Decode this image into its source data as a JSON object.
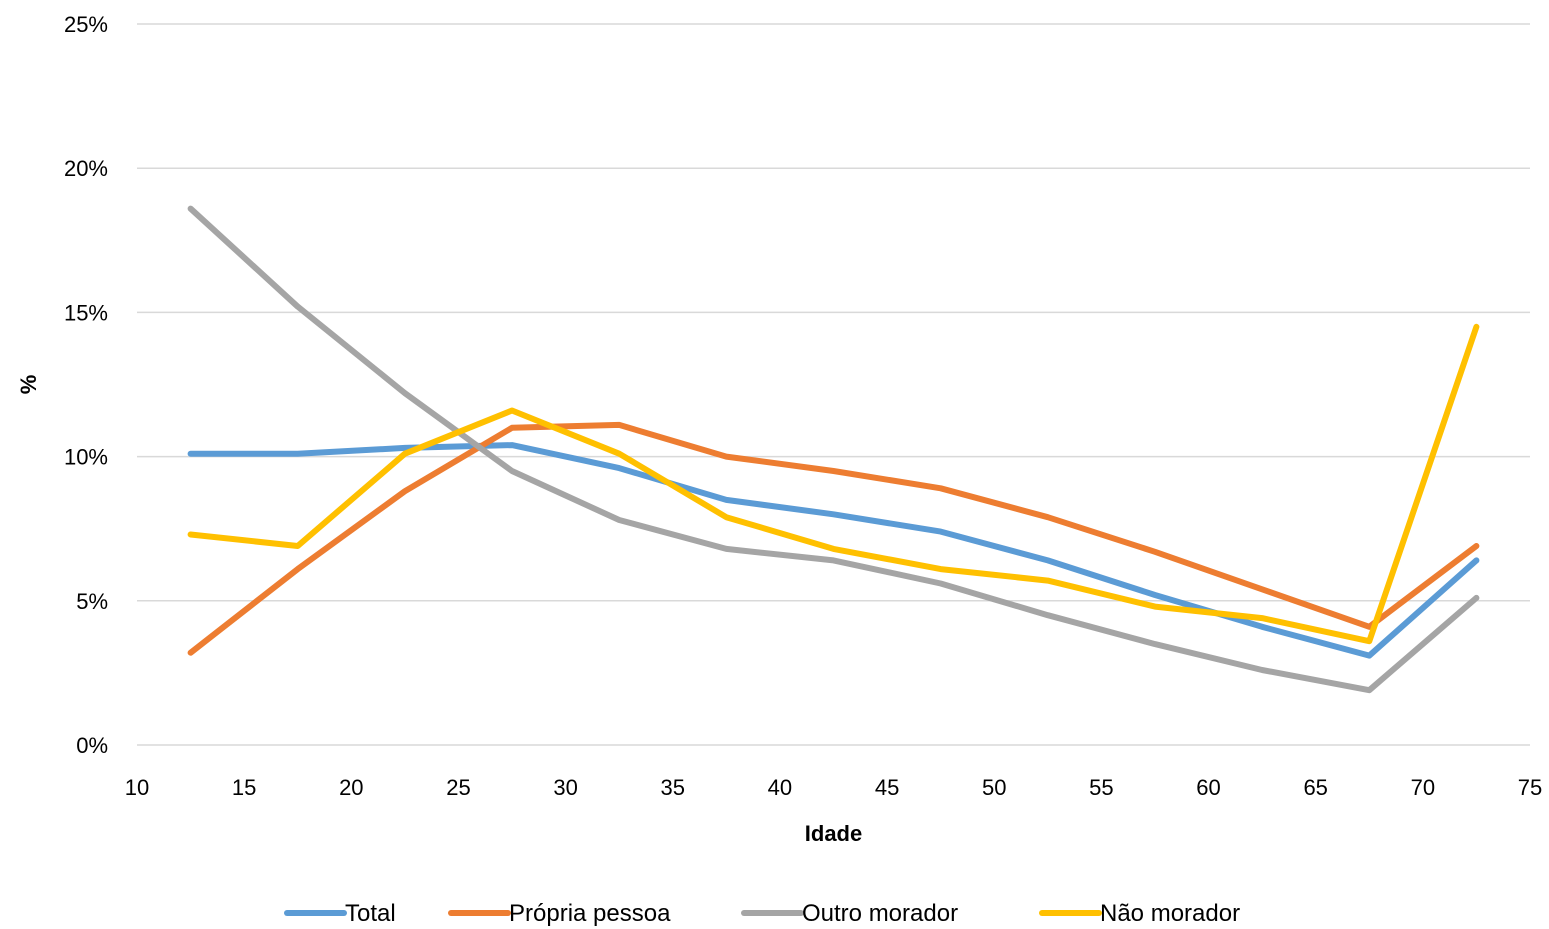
{
  "chart_data": {
    "type": "line",
    "title": "",
    "xlabel": "Idade",
    "ylabel": "%",
    "xlim": [
      10,
      75
    ],
    "ylim": [
      0,
      25
    ],
    "x_ticks": [
      "10",
      "15",
      "20",
      "25",
      "30",
      "35",
      "40",
      "45",
      "50",
      "55",
      "60",
      "65",
      "70",
      "75"
    ],
    "y_ticks": [
      "0%",
      "5%",
      "10%",
      "15%",
      "20%",
      "25%"
    ],
    "grid": "horizontal",
    "legend_position": "bottom",
    "x": [
      12.5,
      17.5,
      22.5,
      27.5,
      32.5,
      37.5,
      42.5,
      47.5,
      52.5,
      57.5,
      62.5,
      67.5,
      72.5
    ],
    "series": [
      {
        "name": "Total",
        "color": "#5B9BD5",
        "values": [
          10.1,
          10.1,
          10.3,
          10.4,
          9.6,
          8.5,
          8.0,
          7.4,
          6.4,
          5.2,
          4.1,
          3.1,
          6.4
        ]
      },
      {
        "name": "Própria pessoa",
        "color": "#ED7D31",
        "values": [
          3.2,
          6.1,
          8.8,
          11.0,
          11.1,
          10.0,
          9.5,
          8.9,
          7.9,
          6.7,
          5.4,
          4.1,
          6.9
        ]
      },
      {
        "name": "Outro morador",
        "color": "#A5A5A5",
        "values": [
          18.6,
          15.2,
          12.2,
          9.5,
          7.8,
          6.8,
          6.4,
          5.6,
          4.5,
          3.5,
          2.6,
          1.9,
          5.1
        ]
      },
      {
        "name": "Não morador",
        "color": "#FFC000",
        "values": [
          7.3,
          6.9,
          10.1,
          11.6,
          10.1,
          7.9,
          6.8,
          6.1,
          5.7,
          4.8,
          4.4,
          3.6,
          14.5
        ]
      }
    ]
  }
}
